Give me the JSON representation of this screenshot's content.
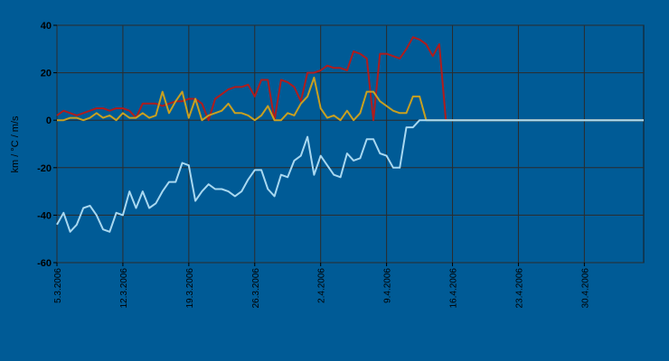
{
  "chart_data": {
    "type": "line",
    "ylabel": "km / °C / m/s",
    "ylim": [
      -60,
      40
    ],
    "yticks": [
      -60,
      -40,
      -20,
      0,
      20,
      40
    ],
    "x_range": [
      0,
      89
    ],
    "xticks": [
      {
        "x": 0,
        "label": "5.3.2006"
      },
      {
        "x": 10,
        "label": "12.3.2006"
      },
      {
        "x": 20,
        "label": "19.3.2006"
      },
      {
        "x": 30,
        "label": "26.3.2006"
      },
      {
        "x": 40,
        "label": "2.4.2006"
      },
      {
        "x": 50,
        "label": "9.4.2006"
      },
      {
        "x": 60,
        "label": "16.4.2006"
      },
      {
        "x": 70,
        "label": "23.4.2006"
      },
      {
        "x": 80,
        "label": "30.4.2006"
      }
    ],
    "grid": true,
    "background": "#005b96",
    "series": [
      {
        "color": "#b01c1c",
        "points": [
          [
            0,
            2
          ],
          [
            1,
            4
          ],
          [
            2,
            3
          ],
          [
            3,
            2
          ],
          [
            4,
            3
          ],
          [
            5,
            4
          ],
          [
            6,
            5
          ],
          [
            7,
            5
          ],
          [
            8,
            4
          ],
          [
            9,
            5
          ],
          [
            10,
            5
          ],
          [
            11,
            4
          ],
          [
            12,
            1
          ],
          [
            13,
            7
          ],
          [
            14,
            7
          ],
          [
            15,
            7
          ],
          [
            16,
            6
          ],
          [
            17,
            7
          ],
          [
            18,
            8
          ],
          [
            19,
            8
          ],
          [
            20,
            9
          ],
          [
            21,
            9
          ],
          [
            22,
            7
          ],
          [
            23,
            0
          ],
          [
            24,
            9
          ],
          [
            25,
            11
          ],
          [
            26,
            13
          ],
          [
            27,
            14
          ],
          [
            28,
            14
          ],
          [
            29,
            15
          ],
          [
            30,
            10
          ],
          [
            31,
            17
          ],
          [
            32,
            17
          ],
          [
            33,
            0
          ],
          [
            34,
            17
          ],
          [
            35,
            16
          ],
          [
            36,
            14
          ],
          [
            37,
            8
          ],
          [
            38,
            20
          ],
          [
            39,
            20
          ],
          [
            40,
            21
          ],
          [
            41,
            23
          ],
          [
            42,
            22
          ],
          [
            43,
            22
          ],
          [
            44,
            21
          ],
          [
            45,
            29
          ],
          [
            46,
            28
          ],
          [
            47,
            26
          ],
          [
            48,
            0
          ],
          [
            49,
            28
          ],
          [
            50,
            28
          ],
          [
            51,
            27
          ],
          [
            52,
            26
          ],
          [
            53,
            30
          ],
          [
            54,
            35
          ],
          [
            55,
            34
          ],
          [
            56,
            32
          ],
          [
            57,
            27
          ],
          [
            58,
            32
          ],
          [
            59,
            0
          ],
          [
            60,
            0
          ],
          [
            61,
            0
          ],
          [
            62,
            0
          ],
          [
            63,
            0
          ],
          [
            64,
            0
          ],
          [
            65,
            0
          ],
          [
            66,
            0
          ],
          [
            67,
            0
          ],
          [
            68,
            0
          ],
          [
            69,
            0
          ],
          [
            70,
            0
          ],
          [
            71,
            0
          ],
          [
            72,
            0
          ],
          [
            73,
            0
          ],
          [
            74,
            0
          ],
          [
            75,
            0
          ],
          [
            76,
            0
          ],
          [
            77,
            0
          ],
          [
            78,
            0
          ],
          [
            79,
            0
          ],
          [
            80,
            0
          ],
          [
            81,
            0
          ],
          [
            82,
            0
          ],
          [
            83,
            0
          ],
          [
            84,
            0
          ],
          [
            85,
            0
          ],
          [
            86,
            0
          ],
          [
            87,
            0
          ],
          [
            88,
            0
          ],
          [
            89,
            0
          ]
        ]
      },
      {
        "color": "#c8a020",
        "points": [
          [
            0,
            0
          ],
          [
            1,
            0
          ],
          [
            2,
            1
          ],
          [
            3,
            1
          ],
          [
            4,
            0
          ],
          [
            5,
            1
          ],
          [
            6,
            3
          ],
          [
            7,
            1
          ],
          [
            8,
            2
          ],
          [
            9,
            0
          ],
          [
            10,
            3
          ],
          [
            11,
            1
          ],
          [
            12,
            1
          ],
          [
            13,
            3
          ],
          [
            14,
            1
          ],
          [
            15,
            2
          ],
          [
            16,
            12
          ],
          [
            17,
            3
          ],
          [
            18,
            8
          ],
          [
            19,
            12
          ],
          [
            20,
            1
          ],
          [
            21,
            9
          ],
          [
            22,
            0
          ],
          [
            23,
            2
          ],
          [
            24,
            3
          ],
          [
            25,
            4
          ],
          [
            26,
            7
          ],
          [
            27,
            3
          ],
          [
            28,
            3
          ],
          [
            29,
            2
          ],
          [
            30,
            0
          ],
          [
            31,
            2
          ],
          [
            32,
            6
          ],
          [
            33,
            0
          ],
          [
            34,
            0
          ],
          [
            35,
            3
          ],
          [
            36,
            2
          ],
          [
            37,
            7
          ],
          [
            38,
            10
          ],
          [
            39,
            18
          ],
          [
            40,
            5
          ],
          [
            41,
            1
          ],
          [
            42,
            2
          ],
          [
            43,
            0
          ],
          [
            44,
            4
          ],
          [
            45,
            0
          ],
          [
            46,
            3
          ],
          [
            47,
            12
          ],
          [
            48,
            12
          ],
          [
            49,
            8
          ],
          [
            50,
            6
          ],
          [
            51,
            4
          ],
          [
            52,
            3
          ],
          [
            53,
            3
          ],
          [
            54,
            10
          ],
          [
            55,
            10
          ],
          [
            56,
            0
          ],
          [
            57,
            0
          ],
          [
            58,
            0
          ],
          [
            59,
            0
          ],
          [
            60,
            0
          ],
          [
            61,
            0
          ],
          [
            62,
            0
          ],
          [
            63,
            0
          ],
          [
            64,
            0
          ],
          [
            65,
            0
          ],
          [
            66,
            0
          ],
          [
            67,
            0
          ],
          [
            68,
            0
          ],
          [
            69,
            0
          ],
          [
            70,
            0
          ],
          [
            71,
            0
          ],
          [
            72,
            0
          ],
          [
            73,
            0
          ],
          [
            74,
            0
          ],
          [
            75,
            0
          ],
          [
            76,
            0
          ],
          [
            77,
            0
          ],
          [
            78,
            0
          ],
          [
            79,
            0
          ],
          [
            80,
            0
          ],
          [
            81,
            0
          ],
          [
            82,
            0
          ],
          [
            83,
            0
          ],
          [
            84,
            0
          ],
          [
            85,
            0
          ],
          [
            86,
            0
          ],
          [
            87,
            0
          ],
          [
            88,
            0
          ],
          [
            89,
            0
          ]
        ]
      },
      {
        "color": "#a8d8f0",
        "points": [
          [
            0,
            -44
          ],
          [
            1,
            -39
          ],
          [
            2,
            -47
          ],
          [
            3,
            -44
          ],
          [
            4,
            -37
          ],
          [
            5,
            -36
          ],
          [
            6,
            -40
          ],
          [
            7,
            -46
          ],
          [
            8,
            -47
          ],
          [
            9,
            -39
          ],
          [
            10,
            -40
          ],
          [
            11,
            -30
          ],
          [
            12,
            -37
          ],
          [
            13,
            -30
          ],
          [
            14,
            -37
          ],
          [
            15,
            -35
          ],
          [
            16,
            -30
          ],
          [
            17,
            -26
          ],
          [
            18,
            -26
          ],
          [
            19,
            -18
          ],
          [
            20,
            -19
          ],
          [
            21,
            -34
          ],
          [
            22,
            -30
          ],
          [
            23,
            -27
          ],
          [
            24,
            -29
          ],
          [
            25,
            -29
          ],
          [
            26,
            -30
          ],
          [
            27,
            -32
          ],
          [
            28,
            -30
          ],
          [
            29,
            -25
          ],
          [
            30,
            -21
          ],
          [
            31,
            -21
          ],
          [
            32,
            -29
          ],
          [
            33,
            -32
          ],
          [
            34,
            -23
          ],
          [
            35,
            -24
          ],
          [
            36,
            -17
          ],
          [
            37,
            -15
          ],
          [
            38,
            -7
          ],
          [
            39,
            -23
          ],
          [
            40,
            -15
          ],
          [
            41,
            -19
          ],
          [
            42,
            -23
          ],
          [
            43,
            -24
          ],
          [
            44,
            -14
          ],
          [
            45,
            -17
          ],
          [
            46,
            -16
          ],
          [
            47,
            -8
          ],
          [
            48,
            -8
          ],
          [
            49,
            -14
          ],
          [
            50,
            -15
          ],
          [
            51,
            -20
          ],
          [
            52,
            -20
          ],
          [
            53,
            -3
          ],
          [
            54,
            -3
          ],
          [
            55,
            0
          ],
          [
            56,
            0
          ],
          [
            57,
            0
          ],
          [
            58,
            0
          ],
          [
            59,
            0
          ],
          [
            60,
            0
          ],
          [
            61,
            0
          ],
          [
            62,
            0
          ],
          [
            63,
            0
          ],
          [
            64,
            0
          ],
          [
            65,
            0
          ],
          [
            66,
            0
          ],
          [
            67,
            0
          ],
          [
            68,
            0
          ],
          [
            69,
            0
          ],
          [
            70,
            0
          ],
          [
            71,
            0
          ],
          [
            72,
            0
          ],
          [
            73,
            0
          ],
          [
            74,
            0
          ],
          [
            75,
            0
          ],
          [
            76,
            0
          ],
          [
            77,
            0
          ],
          [
            78,
            0
          ],
          [
            79,
            0
          ],
          [
            80,
            0
          ],
          [
            81,
            0
          ],
          [
            82,
            0
          ],
          [
            83,
            0
          ],
          [
            84,
            0
          ],
          [
            85,
            0
          ],
          [
            86,
            0
          ],
          [
            87,
            0
          ],
          [
            88,
            0
          ],
          [
            89,
            0
          ]
        ]
      }
    ]
  }
}
